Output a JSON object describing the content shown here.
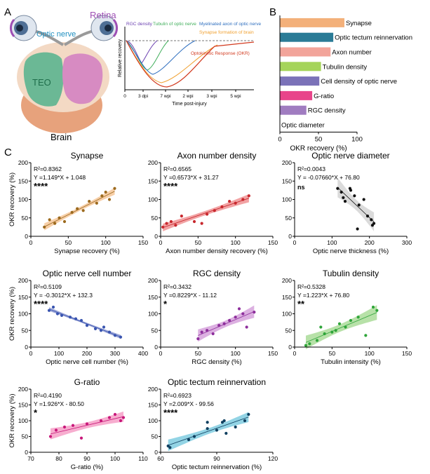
{
  "panels": {
    "a": "A",
    "b": "B",
    "c": "C"
  },
  "panel_a": {
    "brain_labels": {
      "retina": "Retina",
      "optic_nerve": "Optic nerve",
      "teo": "TEO",
      "brain": "Brain"
    },
    "schematic": {
      "ylabel": "Relative recovery",
      "xlabel": "Time post-injury",
      "xticks": [
        "0",
        "3 dpi",
        "7 wpi",
        "2 wpi",
        "3 wpi",
        "5 wpi"
      ],
      "curves": [
        "RGC density",
        "Tubulin of optic nerve",
        "Myelinated axon of optic nerve",
        "Synapse formation of brain",
        "Optokinetic Response (OKR)"
      ],
      "colors": {
        "rgc": "#6a3fb0",
        "tubulin": "#3fae5a",
        "myelin": "#2f6fbf",
        "synapse": "#f0a030",
        "okr": "#d23a1f"
      }
    }
  },
  "chart_data": [
    {
      "id": "B",
      "type": "bar",
      "xlabel": "OKR recovery (%)",
      "xlim": [
        0,
        100
      ],
      "xticks": [
        "0",
        "50",
        "100"
      ],
      "categories": [
        "Synapse",
        "Optic tectum reinnervation",
        "Axon number",
        "Tubulin density",
        "Cell density of optic nerve",
        "G-ratio",
        "RGC density",
        "Optic diameter"
      ],
      "values": [
        83.6,
        69.2,
        65.7,
        53.3,
        51.1,
        41.9,
        34.3,
        0.4
      ],
      "colors": [
        "#f3b07a",
        "#2a7b96",
        "#f2a49a",
        "#a5d45a",
        "#7b72b8",
        "#e8448a",
        "#a07cc0",
        "#cccccc"
      ]
    },
    {
      "id": "synapse",
      "type": "scatter",
      "title": "Synapse",
      "xlabel": "Synapse recovery (%)",
      "ylabel": "OKR recovery (%)",
      "xlim": [
        0,
        150
      ],
      "ylim": [
        0,
        200
      ],
      "xticks": [
        "0",
        "50",
        "100",
        "150"
      ],
      "yticks": [
        "0",
        "50",
        "100",
        "150",
        "200"
      ],
      "r2": "R²=0.8362",
      "equation": "Y =1.149*X + 1.048",
      "significance": "****",
      "color": "#9c6a1e",
      "band_color": "#f0a860",
      "x": [
        18,
        25,
        32,
        38,
        45,
        55,
        62,
        70,
        78,
        88,
        95,
        100,
        105,
        112
      ],
      "y": [
        25,
        45,
        35,
        50,
        40,
        65,
        75,
        70,
        95,
        90,
        110,
        120,
        100,
        130
      ]
    },
    {
      "id": "axon",
      "type": "scatter",
      "title": "Axon number density",
      "xlabel": "Axon  number density recovery (%)",
      "ylabel": "",
      "xlim": [
        0,
        150
      ],
      "ylim": [
        0,
        200
      ],
      "xticks": [
        "0",
        "50",
        "100",
        "150"
      ],
      "yticks": [
        "0",
        "50",
        "100",
        "150",
        "200"
      ],
      "r2": "R²=0.6565",
      "equation": "Y =0.6573*X + 31.27",
      "significance": "****",
      "color": "#c8282e",
      "band_color": "#e8585a",
      "x": [
        3,
        8,
        14,
        20,
        28,
        45,
        55,
        62,
        72,
        82,
        92,
        100,
        110,
        118
      ],
      "y": [
        25,
        35,
        40,
        30,
        55,
        40,
        35,
        60,
        70,
        80,
        95,
        90,
        100,
        110
      ]
    },
    {
      "id": "diameter",
      "type": "scatter",
      "title": "Optic nerve diameter",
      "xlabel": "Optic nerve thickness (%)",
      "ylabel": "",
      "xlim": [
        0,
        300
      ],
      "ylim": [
        0,
        200
      ],
      "xticks": [
        "0",
        "100",
        "200",
        "300"
      ],
      "yticks": [
        "0",
        "50",
        "100",
        "150",
        "200"
      ],
      "r2": "R²=0.0043",
      "equation": "Y = -0.07660*X + 76.80",
      "significance": "ns",
      "color": "#111111",
      "band_color": "#bdbdbd",
      "x": [
        115,
        125,
        135,
        148,
        160,
        168,
        172,
        185,
        195,
        205,
        208,
        212,
        150,
        130
      ],
      "y": [
        130,
        120,
        95,
        130,
        110,
        20,
        85,
        100,
        55,
        45,
        30,
        35,
        125,
        105
      ]
    },
    {
      "id": "cellnumber",
      "type": "scatter",
      "title": "Optic nerve cell number",
      "xlabel": "Optic nerve cell number (%)",
      "ylabel": "OKR recovery (%)",
      "xlim": [
        0,
        400
      ],
      "ylim": [
        0,
        200
      ],
      "xticks": [
        "0",
        "100",
        "200",
        "300",
        "400"
      ],
      "yticks": [
        "0",
        "50",
        "100",
        "150",
        "200"
      ],
      "r2": "R²=0.5109",
      "equation": "Y = -0.3012*X + 132.3",
      "significance": "****",
      "color": "#3a55b0",
      "band_color": "#4a5db8",
      "x": [
        65,
        80,
        95,
        110,
        140,
        160,
        180,
        200,
        230,
        260,
        280,
        300,
        320,
        250
      ],
      "y": [
        110,
        120,
        100,
        95,
        90,
        85,
        80,
        65,
        55,
        60,
        45,
        35,
        30,
        50
      ]
    },
    {
      "id": "rgc",
      "type": "scatter",
      "title": "RGC density",
      "xlabel": "RGC density (%)",
      "ylabel": "",
      "xlim": [
        0,
        150
      ],
      "ylim": [
        0,
        200
      ],
      "xticks": [
        "0",
        "50",
        "100",
        "150"
      ],
      "yticks": [
        "0",
        "50",
        "100",
        "150",
        "200"
      ],
      "r2": "R²=0.3432",
      "equation": "Y =0.8229*X - 11.12",
      "significance": "*",
      "color": "#8e2f9c",
      "band_color": "#c070c8",
      "x": [
        50,
        55,
        62,
        70,
        78,
        85,
        92,
        100,
        105,
        110,
        115,
        125
      ],
      "y": [
        25,
        45,
        50,
        40,
        65,
        70,
        80,
        90,
        115,
        100,
        60,
        105
      ]
    },
    {
      "id": "tubulin",
      "type": "scatter",
      "title": "Tubulin density",
      "xlabel": "Tubulin intensity (%)",
      "ylabel": "",
      "xlim": [
        0,
        150
      ],
      "ylim": [
        0,
        200
      ],
      "xticks": [
        "0",
        "50",
        "100",
        "150"
      ],
      "yticks": [
        "0",
        "50",
        "100",
        "150",
        "200"
      ],
      "r2": "R²=0.5328",
      "equation": "Y =1.223*X + 76.80",
      "significance": "**",
      "color": "#2fa53a",
      "band_color": "#7cc860",
      "x": [
        15,
        20,
        30,
        40,
        50,
        55,
        60,
        68,
        75,
        85,
        95,
        105,
        110,
        35
      ],
      "y": [
        5,
        10,
        20,
        40,
        45,
        50,
        70,
        60,
        80,
        90,
        35,
        120,
        110,
        60
      ]
    },
    {
      "id": "gratio",
      "type": "scatter",
      "title": "G-ratio",
      "xlabel": "G-ratio (%)",
      "ylabel": "OKR recovery (%)",
      "xlim": [
        70,
        110
      ],
      "ylim": [
        0,
        200
      ],
      "xticks": [
        "70",
        "80",
        "90",
        "100",
        "110"
      ],
      "yticks": [
        "0",
        "50",
        "100",
        "150",
        "200"
      ],
      "r2": "R²=0.4190",
      "equation": "Y =1.926*X - 80.50",
      "significance": "*",
      "color": "#c8187a",
      "band_color": "#f06aa8",
      "x": [
        77,
        79,
        82,
        85,
        88,
        90,
        95,
        98,
        100,
        102,
        103
      ],
      "y": [
        50,
        70,
        80,
        85,
        45,
        90,
        100,
        110,
        120,
        100,
        110
      ]
    },
    {
      "id": "tectum",
      "type": "scatter",
      "title": "Optic tectum reinnervation",
      "xlabel": "Optic tectum reinnervation (%)",
      "ylabel": "",
      "xlim": [
        60,
        120
      ],
      "ylim": [
        0,
        200
      ],
      "xticks": [
        "60",
        "90",
        "120"
      ],
      "yticks": [
        "0",
        "50",
        "100",
        "150",
        "200"
      ],
      "r2": "R²=0.6923",
      "equation": "Y =2.009*X - 99.56",
      "significance": "****",
      "color": "#104060",
      "band_color": "#3ab0d0",
      "x": [
        64,
        65,
        75,
        78,
        85,
        90,
        93,
        94,
        95,
        100,
        105,
        107,
        85
      ],
      "y": [
        20,
        15,
        40,
        50,
        75,
        70,
        95,
        100,
        60,
        80,
        100,
        120,
        95
      ]
    }
  ]
}
